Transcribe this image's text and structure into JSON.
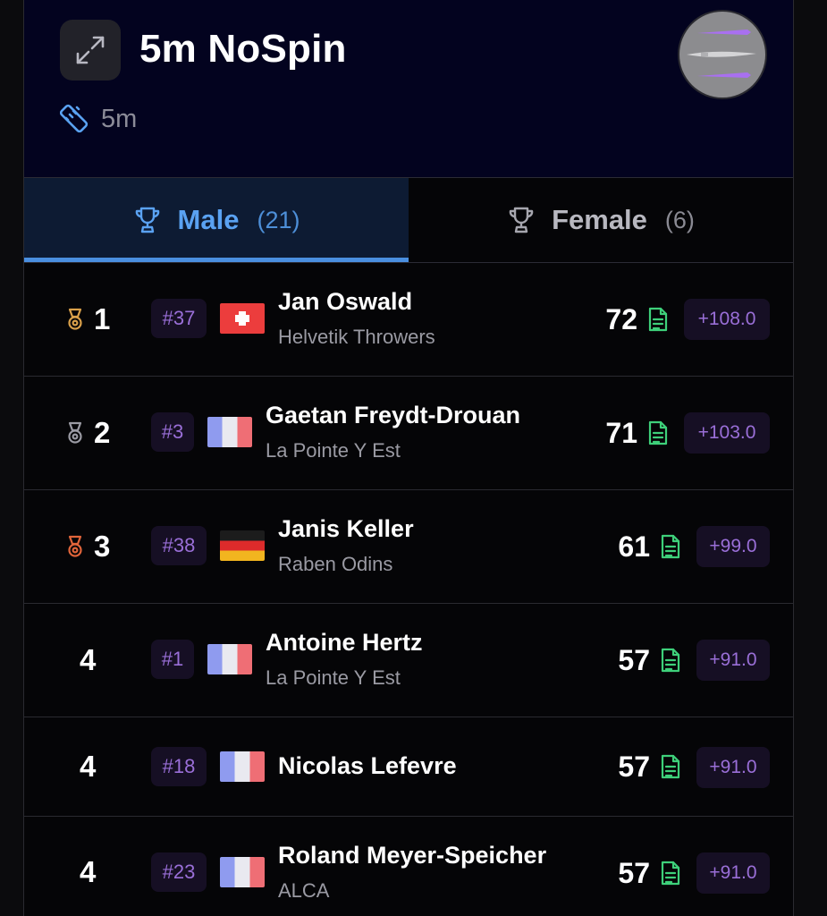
{
  "event": {
    "title": "5m NoSpin",
    "distance": "5m"
  },
  "tabs": [
    {
      "label": "Male",
      "count": "(21)",
      "active": true
    },
    {
      "label": "Female",
      "count": "(6)",
      "active": false
    }
  ],
  "colors": {
    "header_bg": "#03031f",
    "accent_blue": "#5aa2f2",
    "bib_text": "#9a6fd8",
    "doc_green": "#3ed07a",
    "medal_gold": "#d9a04a",
    "medal_silver": "#9a9aa3",
    "medal_bronze": "#e0643a"
  },
  "rows": [
    {
      "rank": "1",
      "medal": "gold",
      "bib": "#37",
      "flag": "switzerland",
      "name": "Jan Oswald",
      "club": "Helvetik Throwers",
      "score": "72",
      "points": "+108.0"
    },
    {
      "rank": "2",
      "medal": "silver",
      "bib": "#3",
      "flag": "france",
      "name": "Gaetan Freydt-Drouan",
      "club": "La Pointe Y Est",
      "score": "71",
      "points": "+103.0"
    },
    {
      "rank": "3",
      "medal": "bronze",
      "bib": "#38",
      "flag": "germany",
      "name": "Janis Keller",
      "club": "Raben Odins",
      "score": "61",
      "points": "+99.0"
    },
    {
      "rank": "4",
      "medal": "",
      "bib": "#1",
      "flag": "france",
      "name": "Antoine Hertz",
      "club": "La Pointe Y Est",
      "score": "57",
      "points": "+91.0"
    },
    {
      "rank": "4",
      "medal": "",
      "bib": "#18",
      "flag": "france",
      "name": "Nicolas Lefevre",
      "club": "",
      "score": "57",
      "points": "+91.0"
    },
    {
      "rank": "4",
      "medal": "",
      "bib": "#23",
      "flag": "france",
      "name": "Roland Meyer-Speicher",
      "club": "ALCA",
      "score": "57",
      "points": "+91.0"
    }
  ]
}
